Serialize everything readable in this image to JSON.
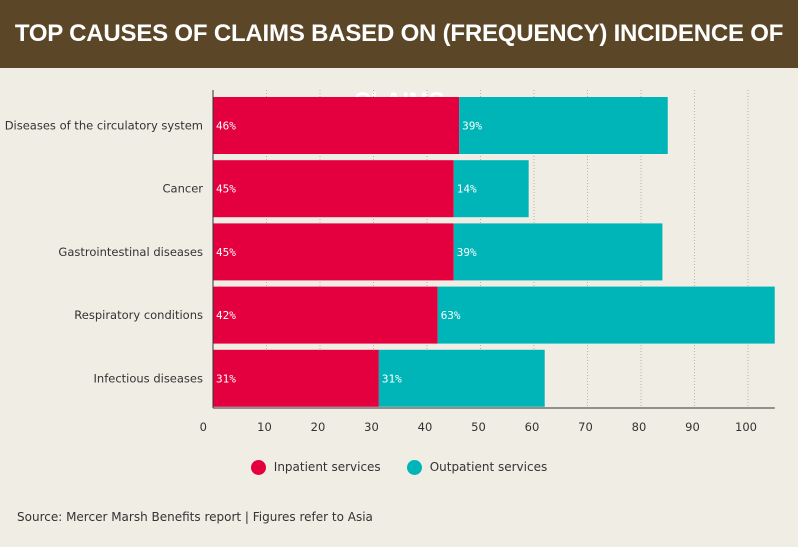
{
  "header": {
    "title": "TOP CAUSES OF CLAIMS BASED ON (FREQUENCY) INCIDENCE OF CLAIMS"
  },
  "colors": {
    "header_bg": "#5b4728",
    "inpatient": "#e4003e",
    "outpatient": "#00b5b8",
    "background": "#efede4"
  },
  "legend": {
    "inpatient": "Inpatient services",
    "outpatient": "Outpatient services"
  },
  "source": "Source: Mercer Marsh Benefits report  | Figures refer to Asia",
  "chart_data": {
    "type": "bar",
    "orientation": "horizontal",
    "stacked": true,
    "categories": [
      "Diseases of the circulatory system",
      "Cancer",
      "Gastrointestinal diseases",
      "Respiratory conditions",
      "Infectious diseases"
    ],
    "series": [
      {
        "name": "Inpatient services",
        "values": [
          46,
          45,
          45,
          42,
          31
        ],
        "labels": [
          "46%",
          "45%",
          "45%",
          "42%",
          "31%"
        ],
        "color": "#e4003e"
      },
      {
        "name": "Outpatient services",
        "values": [
          39,
          14,
          39,
          63,
          31
        ],
        "labels": [
          "39%",
          "14%",
          "39%",
          "63%",
          "31%"
        ],
        "color": "#00b5b8"
      }
    ],
    "xlim": [
      0,
      105
    ],
    "xticks": [
      0,
      10,
      20,
      30,
      40,
      50,
      60,
      70,
      80,
      90,
      100
    ],
    "grid": "vertical",
    "legend_position": "bottom"
  }
}
